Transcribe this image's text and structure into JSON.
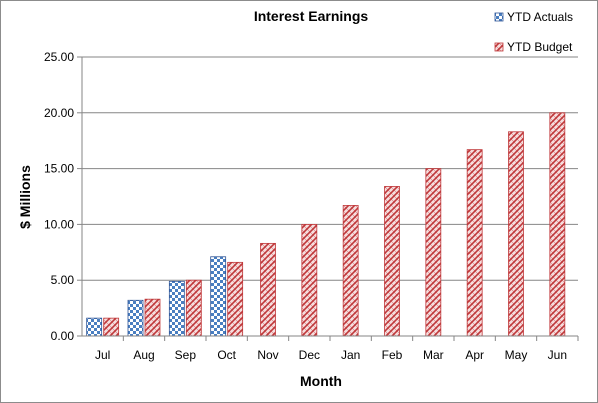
{
  "chart_data": {
    "type": "bar",
    "title": "Interest Earnings",
    "xlabel": "Month",
    "ylabel": "$ Millions",
    "ylim": [
      0,
      25
    ],
    "yticks": [
      "0.00",
      "5.00",
      "10.00",
      "15.00",
      "20.00",
      "25.00"
    ],
    "categories": [
      "Jul",
      "Aug",
      "Sep",
      "Oct",
      "Nov",
      "Dec",
      "Jan",
      "Feb",
      "Mar",
      "Apr",
      "May",
      "Jun"
    ],
    "series": [
      {
        "name": "YTD Actuals",
        "color": "#4a7fc1",
        "pattern": "checkerboard",
        "values": [
          1.6,
          3.2,
          4.9,
          7.1,
          null,
          null,
          null,
          null,
          null,
          null,
          null,
          null
        ]
      },
      {
        "name": "YTD Budget",
        "color": "#c0393b",
        "pattern": "hatched",
        "values": [
          1.6,
          3.3,
          5.0,
          6.6,
          8.3,
          10.0,
          11.7,
          13.4,
          15.0,
          16.7,
          18.3,
          20.0
        ]
      }
    ],
    "grid": "horizontal",
    "legend": "top-right"
  }
}
